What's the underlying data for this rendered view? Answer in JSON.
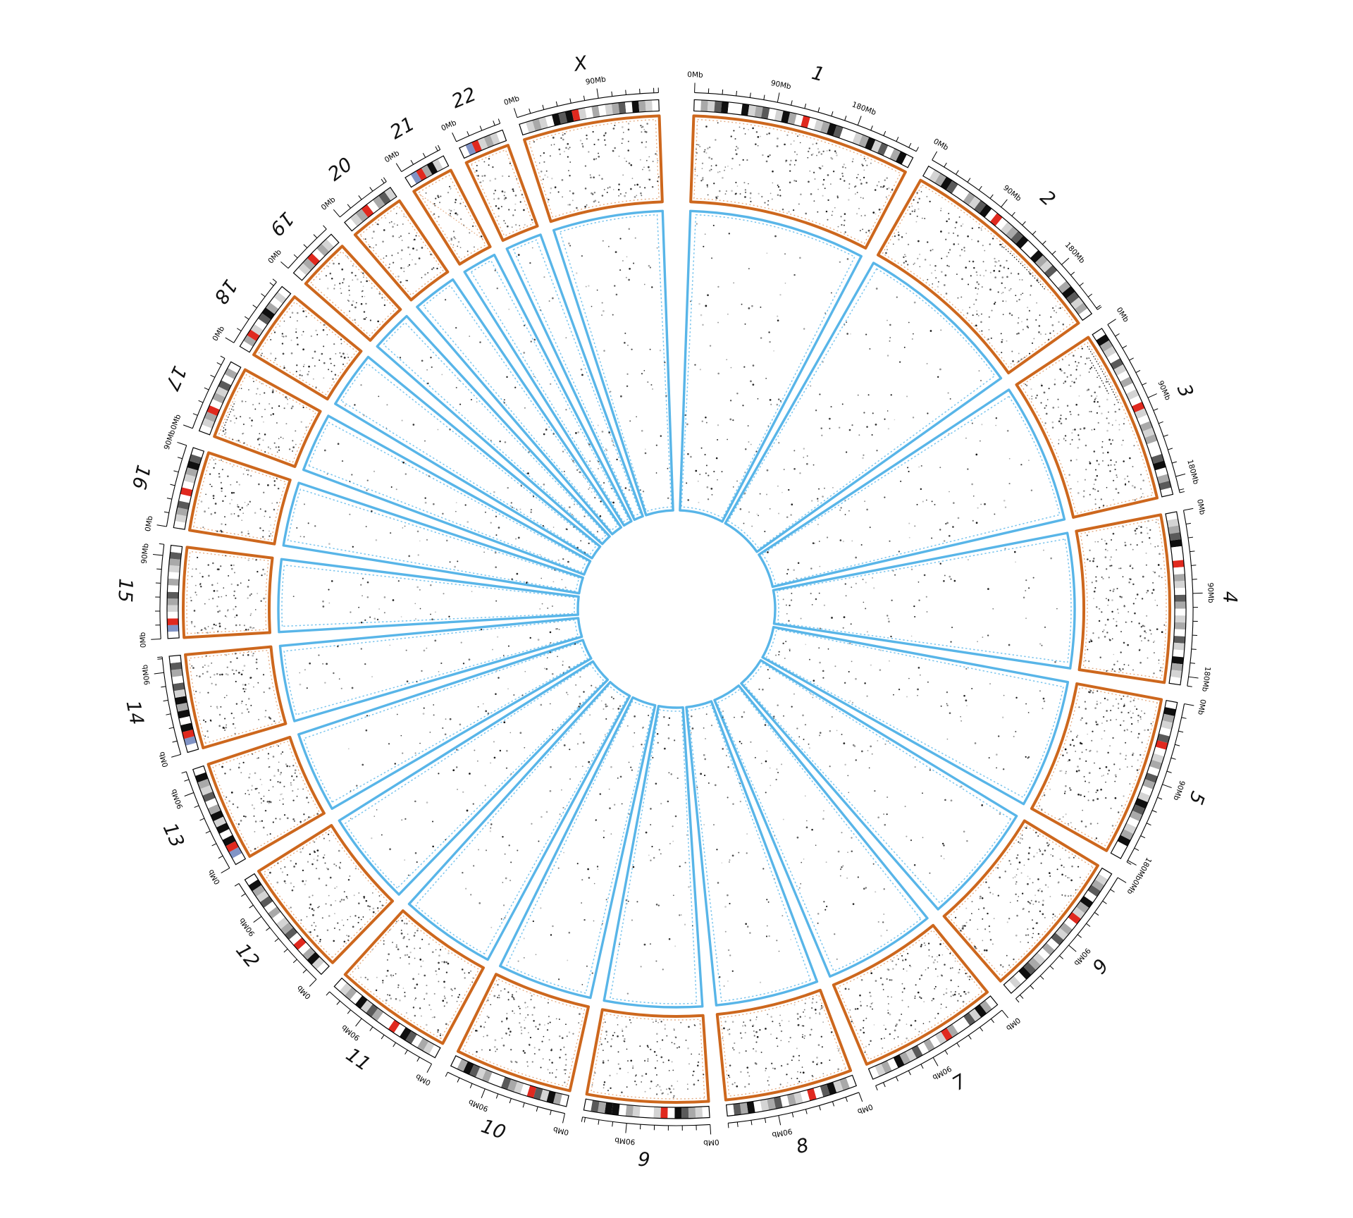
{
  "figure": {
    "kind": "circos genome scatter plot",
    "background": "#ffffff"
  },
  "colors": {
    "outer_border": "#cd671d",
    "inner_border": "#58b5e8",
    "axis": "#000000",
    "point_dark": "#141414",
    "point_light": "#8f8f8f",
    "bands": {
      "w": "#ffffff",
      "l": "#d4d4d4",
      "g": "#a9a9a9",
      "d": "#5a5a5a",
      "b": "#0f0f0f",
      "R": "#e0291f",
      "B": "#8194c6"
    }
  },
  "chart_data": {
    "type": "scatter",
    "layout": "circular-circos",
    "title": "",
    "tick_unit": "Mb",
    "tick_minor_interval_mb": 15,
    "tick_label_interval_mb": 90,
    "outer_points_per_mb": 0.95,
    "inner_points_per_mb": 0.4,
    "rings": [
      {
        "id": "tick-axis",
        "desc": "outward ticks, labels every 90Mb starting at 0Mb"
      },
      {
        "id": "ideogram",
        "desc": "cytoband chromosome bar with red centromere"
      },
      {
        "id": "outer-scatter",
        "border": "#cd671d",
        "desc": "orange-bordered scatter sectors"
      },
      {
        "id": "inner-scatter",
        "border": "#58b5e8",
        "desc": "blue-bordered wedges converging on center hole"
      }
    ],
    "chromosomes": [
      {
        "name": "1",
        "length_mb": 249,
        "bands": "wgldbwwblgdwlbgwRwlgbdwwlgbldwgbw",
        "top_dots": [],
        "diag": false
      },
      {
        "name": "2",
        "length_mb": 242,
        "bands": "wlgbdwwgldbwRwlgdbwwbgldwwgbdlgw",
        "top_dots": [
          [
            0.5,
            0.78,
            8
          ]
        ],
        "diag": false
      },
      {
        "name": "3",
        "length_mb": 198,
        "bands": "wbglwdlwgwlwRlwglgwwdbwgdw",
        "top_dots": [
          [
            0.04,
            0.42,
            8
          ],
          [
            0.1,
            0.34,
            15
          ]
        ],
        "diag": false
      },
      {
        "name": "4",
        "length_mb": 190,
        "bands": "wlgdbwwRwglwdgwlgwdlwbglw",
        "top_dots": [],
        "diag": false
      },
      {
        "name": "5",
        "length_mb": 182,
        "bands": "wbglwdRwlgwdgwlbdgwlgbww",
        "top_dots": [],
        "diag": false
      },
      {
        "name": "6",
        "length_mb": 171,
        "bands": "wlgdwbglRwgldwgwlgdbwlw",
        "top_dots": [],
        "diag": false
      },
      {
        "name": "7",
        "length_mb": 159,
        "bands": "wgbldwwgRlwgwdlgbwglw",
        "top_dots": [],
        "diag": false
      },
      {
        "name": "8",
        "length_mb": 145,
        "bands": "wglbdwRwlgwdglwbgdw",
        "top_dots": [],
        "diag": false
      },
      {
        "name": "9",
        "length_mb": 138,
        "bands": "wlgdbwRlwwlgwbbgdw",
        "top_dots": [],
        "diag": false
      },
      {
        "name": "10",
        "length_mb": 134,
        "bands": "wgbldRwlgdwwgldbgw",
        "top_dots": [],
        "diag": false
      },
      {
        "name": "11",
        "length_mb": 135,
        "bands": "wlgwdbwRwwgdlbwglw",
        "top_dots": [],
        "diag": false
      },
      {
        "name": "12",
        "length_mb": 133,
        "bands": "wlbgwRwdglwgwdlgbw",
        "top_dots": [],
        "diag": false
      },
      {
        "name": "13",
        "length_mb": 114,
        "bands": "wBRbwblbgwdlgbw",
        "top_dots": [],
        "diag": false
      },
      {
        "name": "14",
        "length_mb": 107,
        "bands": "wBRbwbgbldwgdw",
        "top_dots": [],
        "diag": false
      },
      {
        "name": "15",
        "length_mb": 102,
        "bands": "wBRwlgdwgwlgdw",
        "top_dots": [],
        "diag": false
      },
      {
        "name": "16",
        "length_mb": 90,
        "bands": "wlgdwRwlgbdw",
        "top_dots": [],
        "diag": false
      },
      {
        "name": "17",
        "length_mb": 83,
        "bands": "wlgRwgldwgw",
        "top_dots": [
          [
            0.15,
            0.55,
            8
          ]
        ],
        "diag": false
      },
      {
        "name": "18",
        "length_mb": 80,
        "bands": "wgRlwdbgwlw",
        "top_dots": [],
        "diag": false
      },
      {
        "name": "19",
        "length_mb": 59,
        "bands": "wlgRwglw",
        "top_dots": [],
        "diag": false
      },
      {
        "name": "20",
        "length_mb": 63,
        "bands": "wlgRwgdl",
        "top_dots": [],
        "diag": false
      },
      {
        "name": "21",
        "length_mb": 48,
        "bands": "wBRgblw",
        "top_dots": [],
        "diag": true
      },
      {
        "name": "22",
        "length_mb": 51,
        "bands": "wBRlglw",
        "top_dots": [],
        "diag": false
      },
      {
        "name": "X",
        "length_mb": 155,
        "bands": "wlglwbdbRlwgwlgdwbglw",
        "top_dots": [],
        "diag": false
      }
    ]
  }
}
